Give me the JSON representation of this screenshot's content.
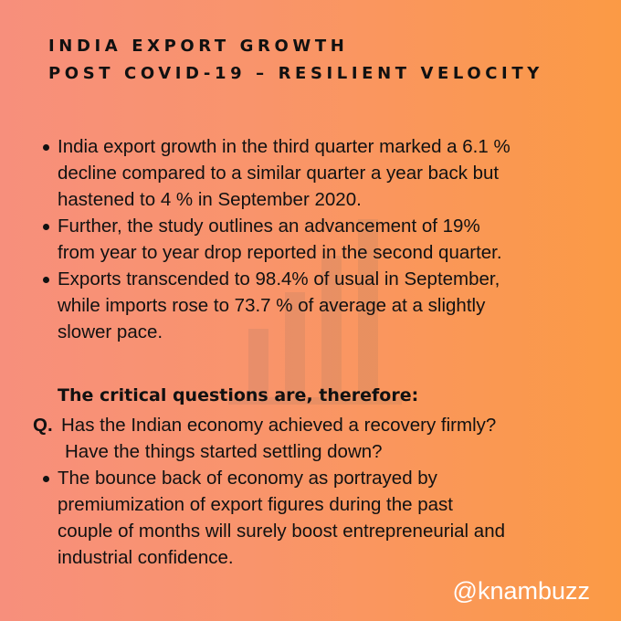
{
  "header": {
    "title_lines": [
      "INDIA EXPORT GROWTH",
      "POST COVID-19 – RESILIENT VELOCITY"
    ]
  },
  "bullets_top": [
    {
      "lines": [
        "India export growth in the third quarter marked a 6.1 %",
        "decline compared to a similar quarter a year back but",
        "hastened to 4 % in September 2020."
      ]
    },
    {
      "lines": [
        "Further, the study outlines an advancement of 19%",
        "from year to year drop reported in the second quarter."
      ]
    },
    {
      "lines": [
        "Exports transcended to 98.4% of usual in September,",
        "while imports rose to 73.7 % of average at a slightly",
        "slower pace."
      ]
    }
  ],
  "subheading": "The critical questions are, therefore:",
  "question": {
    "marker": "Q.",
    "lines": [
      "Has the Indian economy achieved a recovery firmly?",
      "Have the things started settling down?"
    ]
  },
  "bullets_bottom": [
    {
      "lines": [
        "The bounce back of economy as portrayed by",
        "premiumization of export figures during the past",
        "couple of months will surely boost entrepreneurial and",
        "industrial confidence."
      ]
    }
  ],
  "footer": {
    "handle": "@knambuzz"
  }
}
